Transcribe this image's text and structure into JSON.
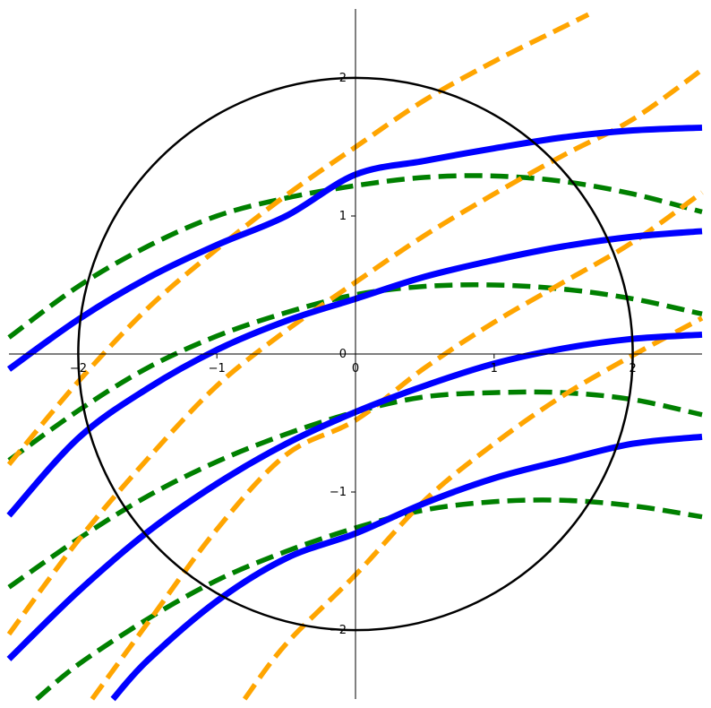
{
  "chart_data": {
    "type": "line",
    "xlim": [
      -2.5,
      2.5
    ],
    "ylim": [
      -2.5,
      2.5
    ],
    "grid": false,
    "legend": "none",
    "x_ticks": [
      {
        "value": -2,
        "label": "−2"
      },
      {
        "value": -1,
        "label": "−1"
      },
      {
        "value": 0,
        "label": "0"
      },
      {
        "value": 1,
        "label": "1"
      },
      {
        "value": 2,
        "label": "2"
      }
    ],
    "y_ticks": [
      {
        "value": -2,
        "label": "−2"
      },
      {
        "value": -1,
        "label": "−1"
      },
      {
        "value": 0,
        "label": "0"
      },
      {
        "value": 1,
        "label": "1"
      },
      {
        "value": 2,
        "label": "2"
      }
    ],
    "circle": {
      "center": [
        0,
        0
      ],
      "radius": 2,
      "color": "#000000"
    },
    "series": [
      {
        "color": "#0000ff",
        "style": "solid",
        "points": [
          [
            -2.5,
            -0.11
          ],
          [
            -2.0,
            0.25
          ],
          [
            -1.5,
            0.55
          ],
          [
            -1.0,
            0.79
          ],
          [
            -0.5,
            1.0
          ],
          [
            0.0,
            1.3
          ],
          [
            0.5,
            1.4
          ],
          [
            1.0,
            1.49
          ],
          [
            1.5,
            1.57
          ],
          [
            2.0,
            1.62
          ],
          [
            2.5,
            1.64
          ]
        ]
      },
      {
        "color": "#0000ff",
        "style": "solid",
        "points": [
          [
            -2.5,
            -1.17
          ],
          [
            -2.0,
            -0.61
          ],
          [
            -1.5,
            -0.25
          ],
          [
            -1.0,
            0.03
          ],
          [
            -0.5,
            0.24
          ],
          [
            0.0,
            0.4
          ],
          [
            0.5,
            0.56
          ],
          [
            1.0,
            0.68
          ],
          [
            1.5,
            0.78
          ],
          [
            2.0,
            0.85
          ],
          [
            2.5,
            0.89
          ]
        ]
      },
      {
        "color": "#0000ff",
        "style": "solid",
        "points": [
          [
            -2.5,
            -2.21
          ],
          [
            -2.0,
            -1.72
          ],
          [
            -1.5,
            -1.29
          ],
          [
            -1.0,
            -0.94
          ],
          [
            -0.5,
            -0.65
          ],
          [
            0.0,
            -0.42
          ],
          [
            0.5,
            -0.23
          ],
          [
            1.0,
            -0.07
          ],
          [
            1.5,
            0.04
          ],
          [
            2.0,
            0.11
          ],
          [
            2.5,
            0.14
          ]
        ]
      },
      {
        "color": "#0000ff",
        "style": "solid",
        "points": [
          [
            -1.75,
            -2.5
          ],
          [
            -1.5,
            -2.22
          ],
          [
            -1.0,
            -1.79
          ],
          [
            -0.5,
            -1.48
          ],
          [
            0.0,
            -1.3
          ],
          [
            0.5,
            -1.08
          ],
          [
            1.0,
            -0.9
          ],
          [
            1.5,
            -0.77
          ],
          [
            2.0,
            -0.65
          ],
          [
            2.5,
            -0.6
          ]
        ]
      },
      {
        "color": "#008000",
        "style": "dashed",
        "points": [
          [
            -2.5,
            0.12
          ],
          [
            -2.0,
            0.49
          ],
          [
            -1.5,
            0.78
          ],
          [
            -1.0,
            1.0
          ],
          [
            -0.5,
            1.13
          ],
          [
            0.0,
            1.22
          ],
          [
            0.5,
            1.28
          ],
          [
            1.0,
            1.29
          ],
          [
            1.5,
            1.25
          ],
          [
            2.0,
            1.16
          ],
          [
            2.5,
            1.03
          ]
        ]
      },
      {
        "color": "#008000",
        "style": "dashed",
        "points": [
          [
            -2.5,
            -0.77
          ],
          [
            -2.0,
            -0.41
          ],
          [
            -1.5,
            -0.1
          ],
          [
            -1.0,
            0.13
          ],
          [
            -0.5,
            0.3
          ],
          [
            0.0,
            0.43
          ],
          [
            0.5,
            0.49
          ],
          [
            1.0,
            0.5
          ],
          [
            1.5,
            0.47
          ],
          [
            2.0,
            0.4
          ],
          [
            2.5,
            0.29
          ]
        ]
      },
      {
        "color": "#008000",
        "style": "dashed",
        "points": [
          [
            -2.5,
            -1.69
          ],
          [
            -2.0,
            -1.34
          ],
          [
            -1.5,
            -1.03
          ],
          [
            -1.0,
            -0.78
          ],
          [
            -0.5,
            -0.58
          ],
          [
            0.0,
            -0.42
          ],
          [
            0.5,
            -0.31
          ],
          [
            1.0,
            -0.28
          ],
          [
            1.5,
            -0.28
          ],
          [
            2.0,
            -0.33
          ],
          [
            2.5,
            -0.44
          ]
        ]
      },
      {
        "color": "#008000",
        "style": "dashed",
        "points": [
          [
            -2.3,
            -2.5
          ],
          [
            -2.0,
            -2.25
          ],
          [
            -1.5,
            -1.92
          ],
          [
            -1.0,
            -1.64
          ],
          [
            -0.5,
            -1.43
          ],
          [
            0.0,
            -1.26
          ],
          [
            0.5,
            -1.13
          ],
          [
            1.0,
            -1.07
          ],
          [
            1.5,
            -1.06
          ],
          [
            2.0,
            -1.1
          ],
          [
            2.5,
            -1.18
          ]
        ]
      },
      {
        "color": "#ffa500",
        "style": "dashed",
        "points": [
          [
            -2.5,
            -0.8
          ],
          [
            -2.0,
            -0.2
          ],
          [
            -1.5,
            0.33
          ],
          [
            -1.0,
            0.76
          ],
          [
            -0.5,
            1.15
          ],
          [
            0.0,
            1.5
          ],
          [
            0.5,
            1.84
          ],
          [
            1.0,
            2.12
          ],
          [
            1.5,
            2.37
          ],
          [
            1.68,
            2.46
          ]
        ]
      },
      {
        "color": "#ffa500",
        "style": "dashed",
        "points": [
          [
            -2.5,
            -2.03
          ],
          [
            -2.0,
            -1.35
          ],
          [
            -1.5,
            -0.76
          ],
          [
            -1.0,
            -0.23
          ],
          [
            -0.5,
            0.17
          ],
          [
            0.0,
            0.52
          ],
          [
            0.5,
            0.86
          ],
          [
            1.0,
            1.16
          ],
          [
            1.5,
            1.44
          ],
          [
            2.0,
            1.7
          ],
          [
            2.5,
            2.06
          ]
        ]
      },
      {
        "color": "#ffa500",
        "style": "dashed",
        "points": [
          [
            -1.9,
            -2.5
          ],
          [
            -1.5,
            -1.95
          ],
          [
            -1.0,
            -1.27
          ],
          [
            -0.5,
            -0.73
          ],
          [
            0.0,
            -0.48
          ],
          [
            0.5,
            -0.1
          ],
          [
            1.0,
            0.23
          ],
          [
            1.5,
            0.52
          ],
          [
            2.0,
            0.81
          ],
          [
            2.5,
            1.17
          ]
        ]
      },
      {
        "color": "#ffa500",
        "style": "dashed",
        "points": [
          [
            -0.8,
            -2.5
          ],
          [
            -0.5,
            -2.1
          ],
          [
            0.0,
            -1.6
          ],
          [
            0.5,
            -1.06
          ],
          [
            1.0,
            -0.65
          ],
          [
            1.5,
            -0.3
          ],
          [
            2.0,
            -0.01
          ],
          [
            2.5,
            0.26
          ]
        ]
      }
    ]
  }
}
